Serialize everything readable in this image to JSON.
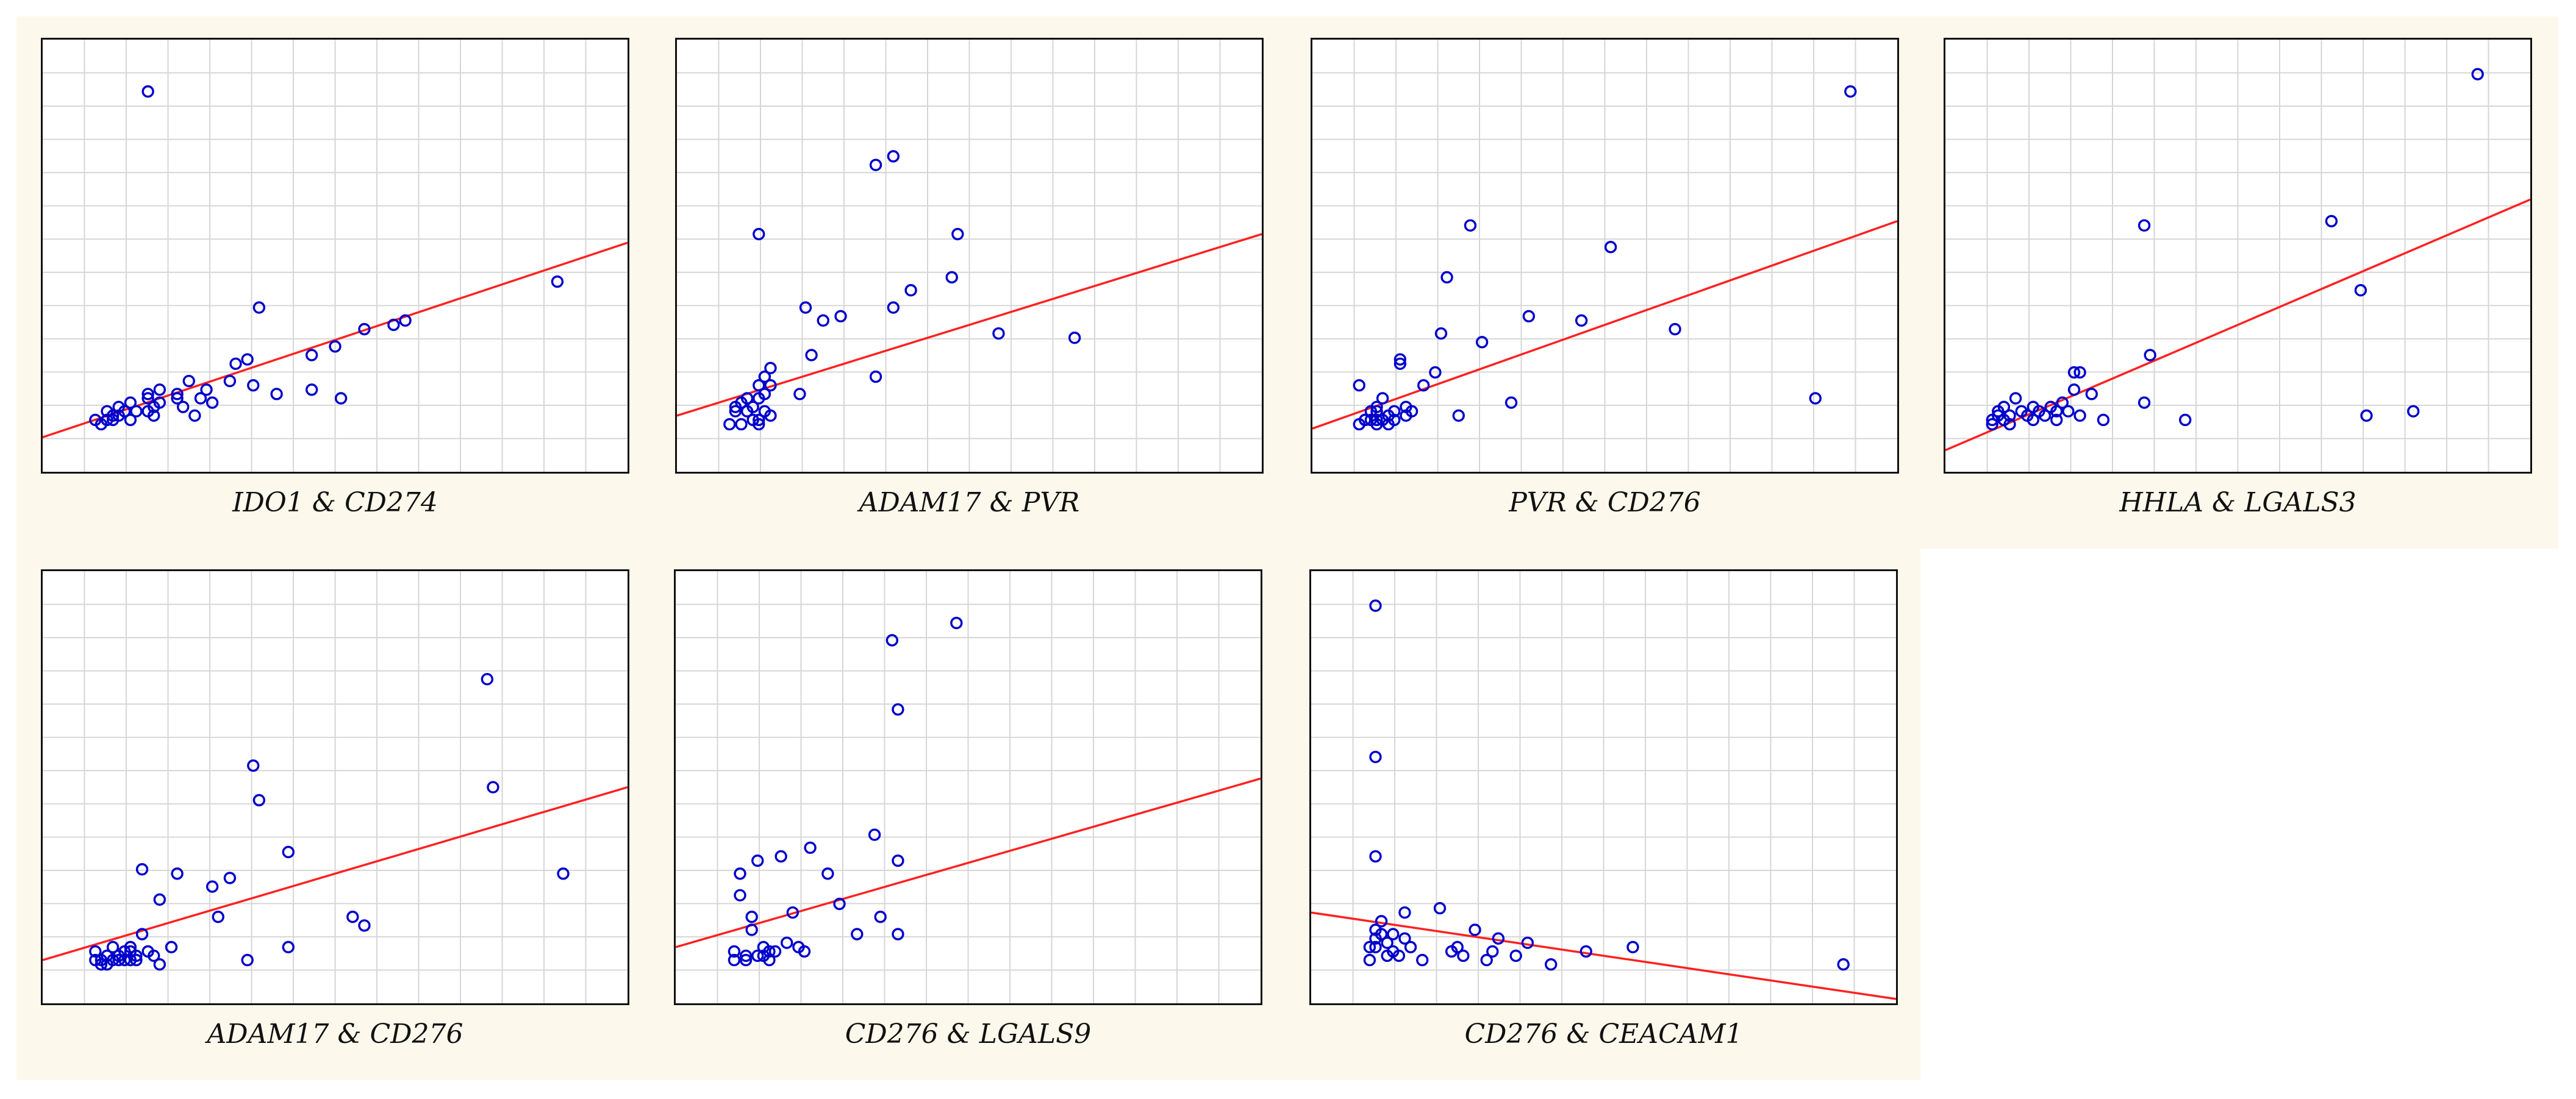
{
  "colors": {
    "grid": "#d6d6d6",
    "point": "#0000cc",
    "line": "#ff2020",
    "frame": "#111111",
    "background_band": "#fdf8ec"
  },
  "chart_data": [
    {
      "type": "scatter",
      "title": "IDO1 & CD274",
      "xlabel": "",
      "ylabel": "",
      "grid": true,
      "xlim": [
        0,
        100
      ],
      "ylim": [
        0,
        100
      ],
      "points": {
        "x": [
          9,
          10,
          11,
          11,
          12,
          12,
          13,
          13,
          14,
          15,
          15,
          16,
          18,
          18,
          18,
          19,
          19,
          20,
          20,
          23,
          23,
          24,
          25,
          26,
          27,
          28,
          29,
          32,
          33,
          35,
          36,
          37,
          40,
          46,
          46,
          50,
          51,
          55,
          60,
          62,
          88,
          18
        ],
        "y": [
          12,
          11,
          12,
          14,
          12,
          13,
          13,
          15,
          14,
          12,
          16,
          14,
          18,
          17,
          14,
          13,
          15,
          16,
          19,
          18,
          17,
          15,
          21,
          13,
          17,
          19,
          16,
          21,
          25,
          26,
          20,
          38,
          18,
          19,
          27,
          29,
          17,
          33,
          34,
          35,
          44,
          88
        ]
      },
      "fit_line": {
        "x": [
          0,
          100
        ],
        "y": [
          8,
          53
        ]
      }
    },
    {
      "type": "scatter",
      "title": "ADAM17 & PVR",
      "xlabel": "",
      "ylabel": "",
      "grid": true,
      "xlim": [
        0,
        100
      ],
      "ylim": [
        0,
        100
      ],
      "points": {
        "x": [
          9,
          10,
          10,
          11,
          11,
          12,
          12,
          13,
          13,
          14,
          14,
          14,
          15,
          15,
          15,
          15,
          16,
          16,
          16,
          21,
          22,
          23,
          25,
          28,
          34,
          34,
          37,
          40,
          47,
          48,
          55,
          68,
          37,
          14,
          14
        ],
        "y": [
          11,
          14,
          15,
          11,
          16,
          14,
          17,
          12,
          15,
          17,
          20,
          11,
          14,
          18,
          22,
          22,
          20,
          24,
          13,
          18,
          38,
          27,
          35,
          36,
          22,
          71,
          38,
          42,
          45,
          55,
          32,
          31,
          73,
          55,
          12
        ]
      },
      "fit_line": {
        "x": [
          0,
          100
        ],
        "y": [
          13,
          55
        ]
      }
    },
    {
      "type": "scatter",
      "title": "PVR & CD276",
      "xlabel": "",
      "ylabel": "",
      "grid": true,
      "xlim": [
        0,
        100
      ],
      "ylim": [
        0,
        100
      ],
      "points": {
        "x": [
          8,
          9,
          9,
          10,
          10,
          11,
          11,
          11,
          12,
          12,
          13,
          13,
          14,
          14,
          15,
          15,
          16,
          16,
          17,
          19,
          21,
          22,
          23,
          25,
          27,
          29,
          34,
          37,
          46,
          51,
          62,
          86,
          92,
          8,
          11
        ],
        "y": [
          11,
          12,
          12,
          14,
          12,
          15,
          14,
          11,
          12,
          17,
          13,
          11,
          12,
          14,
          25,
          26,
          13,
          15,
          14,
          20,
          23,
          32,
          45,
          13,
          57,
          30,
          16,
          36,
          35,
          52,
          33,
          17,
          88,
          20,
          12
        ]
      },
      "fit_line": {
        "x": [
          0,
          100
        ],
        "y": [
          10,
          58
        ]
      }
    },
    {
      "type": "scatter",
      "title": "HHLA & LGALS3",
      "xlabel": "",
      "ylabel": "",
      "grid": true,
      "xlim": [
        0,
        100
      ],
      "ylim": [
        0,
        100
      ],
      "points": {
        "x": [
          8,
          8,
          9,
          9,
          10,
          10,
          11,
          11,
          12,
          13,
          14,
          15,
          15,
          16,
          17,
          18,
          19,
          19,
          20,
          21,
          22,
          22,
          23,
          23,
          25,
          27,
          34,
          34,
          35,
          41,
          66,
          71,
          72,
          80,
          91
        ],
        "y": [
          11,
          12,
          13,
          14,
          12,
          15,
          13,
          11,
          17,
          14,
          13,
          15,
          12,
          14,
          13,
          15,
          14,
          12,
          16,
          14,
          19,
          23,
          13,
          23,
          18,
          12,
          16,
          57,
          27,
          12,
          58,
          42,
          13,
          14,
          92
        ]
      },
      "fit_line": {
        "x": [
          0,
          100
        ],
        "y": [
          5,
          63
        ]
      }
    },
    {
      "type": "scatter",
      "title": "ADAM17 & CD276",
      "xlabel": "",
      "ylabel": "",
      "grid": true,
      "xlim": [
        0,
        100
      ],
      "ylim": [
        0,
        100
      ],
      "points": {
        "x": [
          9,
          9,
          10,
          10,
          11,
          11,
          12,
          12,
          13,
          13,
          14,
          14,
          15,
          15,
          15,
          16,
          16,
          17,
          17,
          18,
          19,
          20,
          20,
          22,
          23,
          29,
          30,
          32,
          35,
          36,
          37,
          42,
          42,
          53,
          55,
          76,
          77,
          89
        ],
        "y": [
          12,
          10,
          9,
          10,
          11,
          9,
          10,
          13,
          10,
          11,
          10,
          12,
          10,
          12,
          13,
          11,
          10,
          31,
          16,
          12,
          11,
          9,
          24,
          13,
          30,
          27,
          20,
          29,
          10,
          55,
          47,
          13,
          35,
          20,
          18,
          75,
          50,
          30
        ]
      },
      "fit_line": {
        "x": [
          0,
          100
        ],
        "y": [
          10,
          50
        ]
      }
    },
    {
      "type": "scatter",
      "title": "CD276 & LGALS9",
      "xlabel": "",
      "ylabel": "",
      "grid": true,
      "xlim": [
        0,
        100
      ],
      "ylim": [
        0,
        100
      ],
      "points": {
        "x": [
          10,
          10,
          11,
          11,
          12,
          12,
          13,
          13,
          14,
          14,
          15,
          15,
          16,
          16,
          17,
          18,
          19,
          20,
          21,
          22,
          23,
          26,
          28,
          31,
          34,
          35,
          38,
          38,
          48,
          38,
          37
        ],
        "y": [
          12,
          10,
          25,
          30,
          11,
          10,
          17,
          20,
          11,
          33,
          11,
          13,
          10,
          12,
          12,
          34,
          14,
          21,
          13,
          12,
          36,
          30,
          23,
          16,
          39,
          20,
          16,
          33,
          88,
          68,
          84
        ]
      },
      "fit_line": {
        "x": [
          0,
          100
        ],
        "y": [
          13,
          52
        ]
      }
    },
    {
      "type": "scatter",
      "title": "CD276 & CEACAM1",
      "xlabel": "",
      "ylabel": "",
      "grid": true,
      "xlim": [
        0,
        100
      ],
      "ylim": [
        0,
        100
      ],
      "points": {
        "x": [
          10,
          10,
          11,
          11,
          11,
          12,
          12,
          13,
          13,
          14,
          14,
          15,
          16,
          16,
          17,
          19,
          22,
          24,
          25,
          26,
          28,
          30,
          31,
          32,
          35,
          37,
          41,
          47,
          55,
          91,
          11,
          11,
          11
        ],
        "y": [
          10,
          13,
          13,
          15,
          17,
          16,
          19,
          11,
          14,
          12,
          16,
          11,
          15,
          21,
          13,
          10,
          22,
          12,
          13,
          11,
          17,
          10,
          12,
          15,
          11,
          14,
          9,
          12,
          13,
          9,
          34,
          57,
          92
        ]
      },
      "fit_line": {
        "x": [
          0,
          100
        ],
        "y": [
          21,
          1
        ]
      }
    }
  ]
}
